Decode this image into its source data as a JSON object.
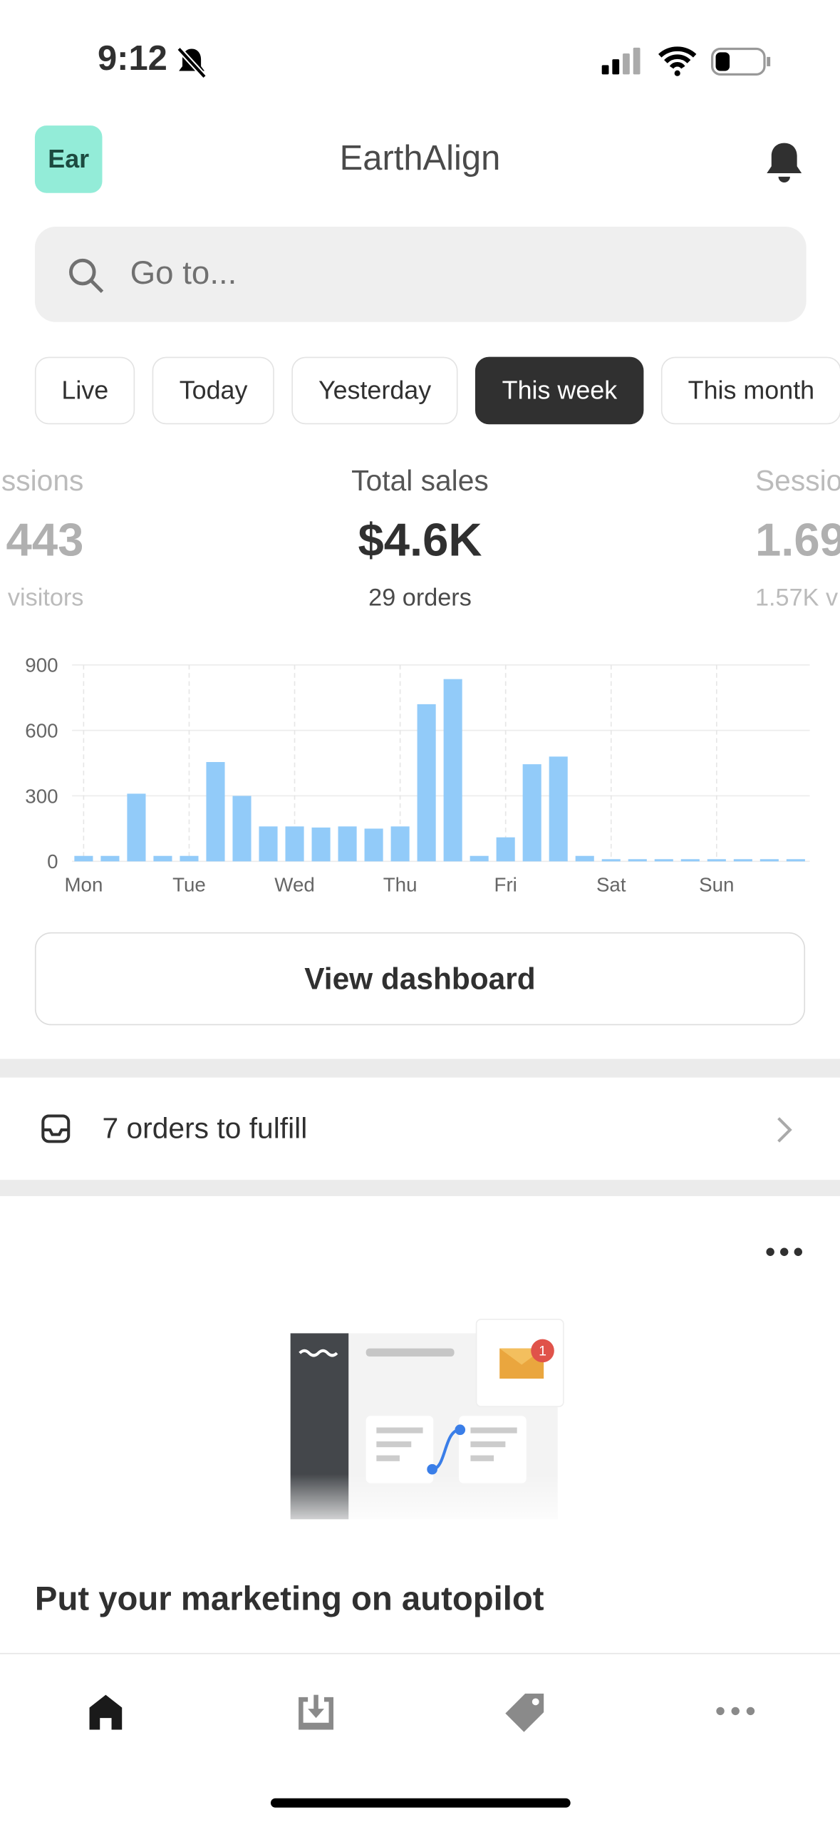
{
  "status_bar": {
    "time": "9:12"
  },
  "header": {
    "avatar": "Ear",
    "title": "EarthAlign"
  },
  "search": {
    "placeholder": "Go to..."
  },
  "tabs": {
    "items": [
      "Live",
      "Today",
      "Yesterday",
      "This week",
      "This month"
    ],
    "selected_index": 3
  },
  "metrics": [
    {
      "label": "ssions",
      "value": "443",
      "sub": "visitors"
    },
    {
      "label": "Total sales",
      "value": "$4.6K",
      "sub": "29 orders"
    },
    {
      "label": "Sessio",
      "value": "1.69",
      "sub": "1.57K v"
    }
  ],
  "chart_data": {
    "type": "bar",
    "color": "#92cbf9",
    "categories": [
      "Mon",
      null,
      null,
      null,
      "Tue",
      null,
      null,
      null,
      "Wed",
      null,
      null,
      null,
      "Thu",
      null,
      null,
      null,
      "Fri",
      null,
      null,
      null,
      "Sat",
      null,
      null,
      null,
      "Sun",
      null,
      null,
      null
    ],
    "values": [
      25,
      25,
      310,
      25,
      25,
      455,
      300,
      160,
      160,
      155,
      160,
      150,
      160,
      720,
      835,
      25,
      110,
      445,
      480,
      25,
      10,
      10,
      10,
      10,
      10,
      10,
      10,
      10
    ],
    "ylim": [
      0,
      900
    ],
    "yticks": [
      0,
      300,
      600,
      900
    ],
    "grid": true
  },
  "buttons": {
    "view_dashboard": "View dashboard"
  },
  "orders": {
    "text": "7 orders to fulfill"
  },
  "marketing": {
    "title": "Put your marketing on autopilot",
    "badge": "1"
  }
}
